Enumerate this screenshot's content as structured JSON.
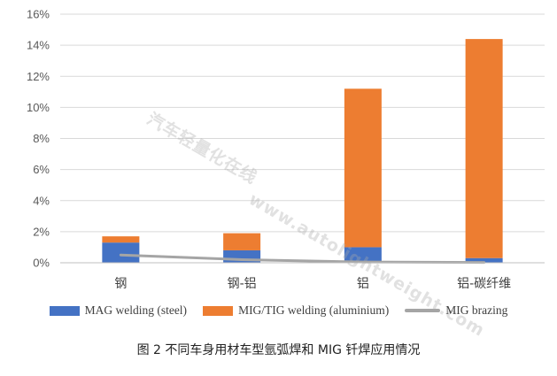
{
  "chart_data": {
    "type": "bar",
    "stacked": true,
    "categories": [
      "钢",
      "钢-铝",
      "铝",
      "铝-碳纤维"
    ],
    "ylim": [
      0,
      16
    ],
    "yticks": [
      "0%",
      "2%",
      "4%",
      "6%",
      "8%",
      "10%",
      "12%",
      "14%",
      "16%"
    ],
    "grid": true,
    "legend_position": "bottom",
    "series": [
      {
        "name": "MAG welding (steel)",
        "kind": "bar",
        "color": "#4472C4",
        "values": [
          1.3,
          0.8,
          1.0,
          0.3
        ]
      },
      {
        "name": "MIG/TIG welding (aluminium)",
        "kind": "bar",
        "color": "#ED7D31",
        "values": [
          0.4,
          1.1,
          10.2,
          14.1
        ]
      },
      {
        "name": "MIG brazing",
        "kind": "line",
        "color": "#A5A5A5",
        "values": [
          0.5,
          0.2,
          0.05,
          0.02
        ]
      }
    ]
  },
  "caption": "图 2  不同车身用材车型氩弧焊和 MIG 钎焊应用情况",
  "watermark": {
    "line1": "汽车轻量化在线",
    "line2": "www.autolightweight.com"
  }
}
